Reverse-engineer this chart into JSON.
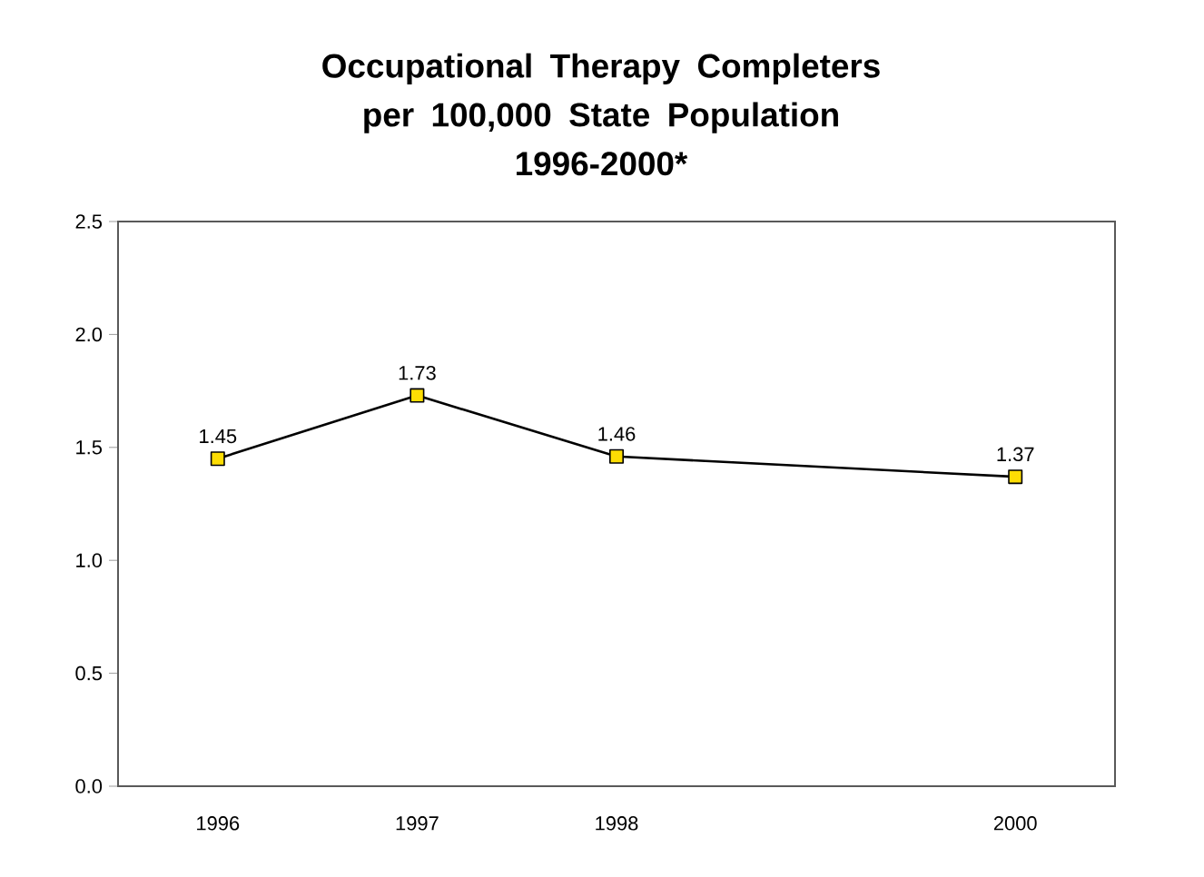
{
  "chart_data": {
    "type": "line",
    "title": "Occupational Therapy Completers\nper 100,000 State Population\n1996-2000*",
    "x": [
      1996,
      1997,
      1998,
      2000
    ],
    "series": [
      {
        "color": "#000000",
        "values": [
          1.45,
          1.73,
          1.46,
          1.37
        ]
      }
    ],
    "marker": "square",
    "line_style": "solid",
    "data_labels": true,
    "grid": false,
    "xlim": [
      1995.5,
      2000.5
    ],
    "xticks": [
      1996,
      1997,
      1998,
      2000
    ],
    "ylim": [
      0,
      2.5
    ],
    "yticks": [
      {
        "value": 0,
        "label": "0.0"
      },
      {
        "value": 0.5,
        "label": "0.5"
      },
      {
        "value": 1,
        "label": "1.0"
      },
      {
        "value": 1.5,
        "label": "1.5"
      },
      {
        "value": 2,
        "label": "2.0"
      },
      {
        "value": 2.5,
        "label": "2.5"
      }
    ]
  }
}
